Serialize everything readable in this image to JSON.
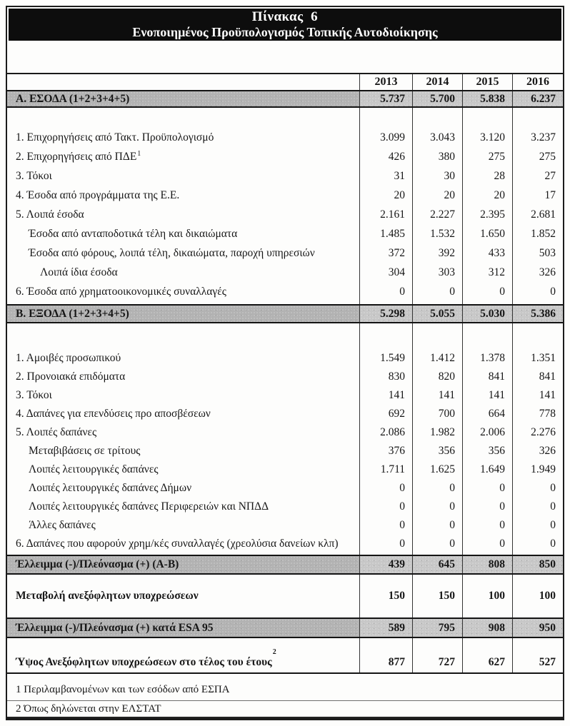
{
  "title": {
    "line1": "Πίνακας  6",
    "line2": "Ενοποιημένος Προϋπολογισμός Τοπικής Αυτοδιοίκησης"
  },
  "years": [
    "2013",
    "2014",
    "2015",
    "2016"
  ],
  "rows": [
    {
      "label": "Α. ΕΣΟΔΑ (1+2+3+4+5)",
      "values": [
        "5.737",
        "5.700",
        "5.838",
        "6.237"
      ]
    },
    {
      "label": "1. Επιχορηγήσεις από Τακτ. Προϋπολογισμό",
      "values": [
        "3.099",
        "3.043",
        "3.120",
        "3.237"
      ]
    },
    {
      "label": "2. Επιχορηγήσεις από ΠΔΕ",
      "sup": "1",
      "values": [
        "426",
        "380",
        "275",
        "275"
      ]
    },
    {
      "label": "3. Τόκοι",
      "values": [
        "31",
        "30",
        "28",
        "27"
      ]
    },
    {
      "label": "4. Έσοδα από προγράμματα της Ε.Ε.",
      "values": [
        "20",
        "20",
        "20",
        "17"
      ]
    },
    {
      "label": "5. Λοιπά έσοδα",
      "values": [
        "2.161",
        "2.227",
        "2.395",
        "2.681"
      ]
    },
    {
      "label": "Έσοδα από ανταποδοτικά τέλη και δικαιώματα",
      "values": [
        "1.485",
        "1.532",
        "1.650",
        "1.852"
      ]
    },
    {
      "label": "Έσοδα από φόρους, λοιπά τέλη, δικαιώματα, παροχή υπηρεσιών",
      "values": [
        "372",
        "392",
        "433",
        "503"
      ]
    },
    {
      "label": "Λοιπά ίδια έσοδα",
      "values": [
        "304",
        "303",
        "312",
        "326"
      ]
    },
    {
      "label": "6. Έσοδα από χρηματοοικονομικές συναλλαγές",
      "values": [
        "0",
        "0",
        "0",
        "0"
      ]
    },
    {
      "label": "Β. ΕΞΟΔΑ (1+2+3+4+5)",
      "values": [
        "5.298",
        "5.055",
        "5.030",
        "5.386"
      ]
    },
    {
      "label": "1. Αμοιβές προσωπικού",
      "values": [
        "1.549",
        "1.412",
        "1.378",
        "1.351"
      ]
    },
    {
      "label": "2. Προνοιακά επιδόματα",
      "values": [
        "830",
        "820",
        "841",
        "841"
      ]
    },
    {
      "label": "3. Τόκοι",
      "values": [
        "141",
        "141",
        "141",
        "141"
      ]
    },
    {
      "label": "4. Δαπάνες για επενδύσεις προ αποσβέσεων",
      "values": [
        "692",
        "700",
        "664",
        "778"
      ]
    },
    {
      "label": "5. Λοιπές δαπάνες",
      "values": [
        "2.086",
        "1.982",
        "2.006",
        "2.276"
      ]
    },
    {
      "label": "Μεταβιβάσεις σε τρίτους",
      "values": [
        "376",
        "356",
        "356",
        "326"
      ]
    },
    {
      "label": "Λοιπές λειτουργικές δαπάνες",
      "values": [
        "1.711",
        "1.625",
        "1.649",
        "1.949"
      ]
    },
    {
      "label": "Λοιπές λειτουργικές δαπάνες Δήμων",
      "values": [
        "0",
        "0",
        "0",
        "0"
      ]
    },
    {
      "label": "Λοιπές λειτουργικές δαπάνες Περιφερειών και ΝΠΔΔ",
      "values": [
        "0",
        "0",
        "0",
        "0"
      ]
    },
    {
      "label": "Άλλες δαπάνες",
      "values": [
        "0",
        "0",
        "0",
        "0"
      ]
    },
    {
      "label": "6. Δαπάνες που αφορούν χρημ/κές συναλλαγές (χρεολύσια δανείων κλπ)",
      "values": [
        "0",
        "0",
        "0",
        "0"
      ]
    },
    {
      "label": "Έλλειμμα (-)/Πλεόνασμα (+) (Α-Β)",
      "values": [
        "439",
        "645",
        "808",
        "850"
      ]
    },
    {
      "label": "Μεταβολή ανεξόφλητων υποχρεώσεων",
      "values": [
        "150",
        "150",
        "100",
        "100"
      ]
    },
    {
      "label": "Έλλειμμα (-)/Πλεόνασμα (+) κατά ESA 95",
      "values": [
        "589",
        "795",
        "908",
        "950"
      ]
    },
    {
      "label": "Ύψος Ανεξόφλητων υποχρεώσεων στο τέλος του έτους",
      "sup": "2",
      "values": [
        "877",
        "727",
        "627",
        "527"
      ]
    }
  ],
  "footnotes": [
    "1 Περιλαμβανομένων και των εσόδων από ΕΣΠΑ",
    "2 Όπως δηλώνεται στην ΕΛΣΤΑΤ"
  ],
  "colors": {
    "title_band_bg": "#0d0d0d",
    "title_band_text": "#ffffff",
    "section_shade": "#b2b2b2",
    "border": "#1b1b1b"
  }
}
